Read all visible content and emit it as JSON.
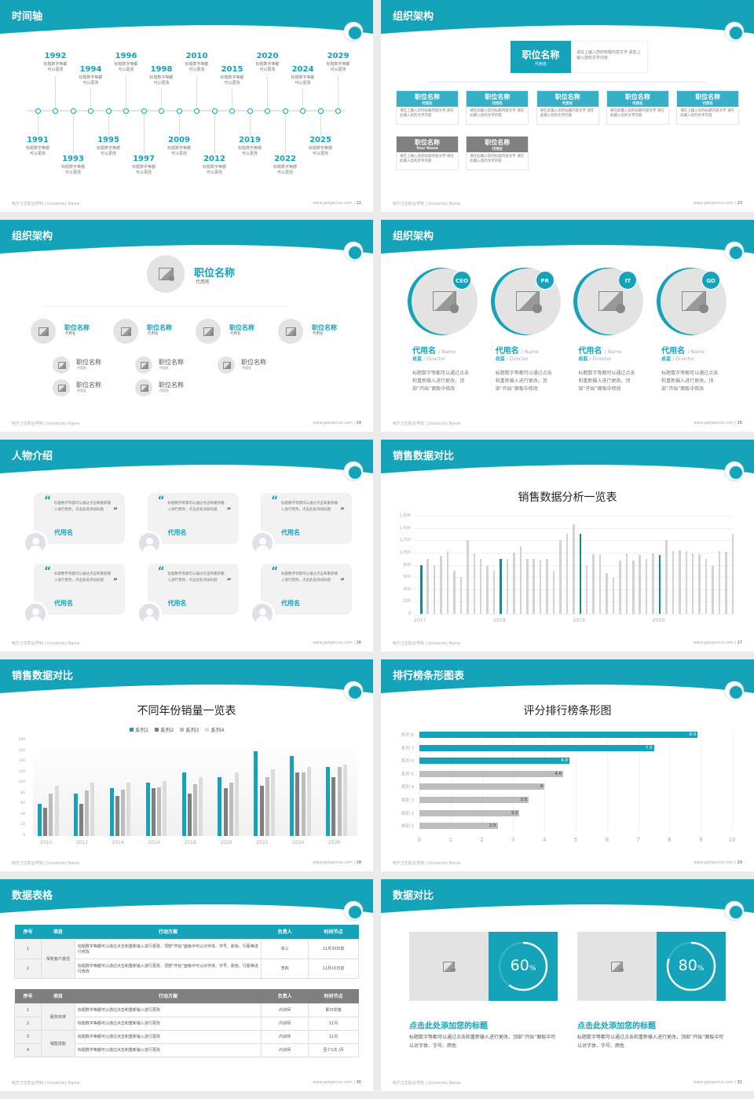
{
  "colors": {
    "teal": "#14a3b8",
    "gray": "#7f7f7f",
    "light": "#c8c8c8"
  },
  "footer": {
    "left": "哈尔卫生职业学院 | University Name",
    "site": "www.pptgenius.com"
  },
  "slides": [
    {
      "title": "时间轴",
      "page": "22"
    },
    {
      "title": "组织架构",
      "page": "23"
    },
    {
      "title": "组织架构",
      "page": "24"
    },
    {
      "title": "组织架构",
      "page": "25"
    },
    {
      "title": "人物介绍",
      "page": "26"
    },
    {
      "title": "销售数据对比",
      "page": "27"
    },
    {
      "title": "销售数据对比",
      "page": "28"
    },
    {
      "title": "排行榜条形图表",
      "page": "29"
    },
    {
      "title": "数据表格",
      "page": "30"
    },
    {
      "title": "数据对比",
      "page": "31"
    }
  ],
  "timeline": {
    "desc": "标题数字等都可以更改",
    "years": [
      "1991",
      "1992",
      "1993",
      "1994",
      "1995",
      "1996",
      "1997",
      "1998",
      "2009",
      "2010",
      "2012",
      "2015",
      "2019",
      "2020",
      "2022",
      "2024",
      "2025",
      "2029"
    ]
  },
  "org1": {
    "top": {
      "title": "职位名称",
      "sub": "代用名",
      "desc": "请在上输入您的标题内容文字 请在上输入您的文字内容"
    },
    "boxes": [
      {
        "title": "职位名称",
        "sub": "代用名",
        "desc": "请在上输入您的标题内容文字 请在此输入您的文字内容",
        "style": "teal"
      },
      {
        "title": "职位名称",
        "sub": "代用名",
        "desc": "请在此输入您的标题内容文字 请在此输入您的文字内容",
        "style": "teal"
      },
      {
        "title": "职位名称",
        "sub": "代用名",
        "desc": "请在此输入您的标题内容文字 请在此输入您的文字内容",
        "style": "teal"
      },
      {
        "title": "职位名称",
        "sub": "代用名",
        "desc": "请在此输入您的标题内容文字 请在此输入您的文字内容",
        "style": "teal"
      },
      {
        "title": "职位名称",
        "sub": "代用名",
        "desc": "请在上输入您的标题内容文字 请在此输入您的文字内容",
        "style": "teal"
      },
      {
        "title": "职位名称",
        "sub": "Your Name",
        "desc": "请在上输入您的标题内容文字 请在此输入您的文字内容",
        "style": "gray"
      },
      {
        "title": "职位名称",
        "sub": "代用名",
        "desc": "请在此输入您的标题内容文字 请在此输入您的文字内容",
        "style": "gray"
      }
    ]
  },
  "org2": {
    "top": {
      "title": "职位名称",
      "sub": "代用名"
    },
    "mid": [
      {
        "title": "职位名称",
        "sub": "代用名"
      },
      {
        "title": "职位名称",
        "sub": "代用名"
      },
      {
        "title": "职位名称",
        "sub": "代用名"
      },
      {
        "title": "职位名称",
        "sub": "代用名"
      }
    ],
    "subs": [
      [
        {
          "title": "职位名称",
          "sub": "代用名"
        },
        {
          "title": "职位名称",
          "sub": "代用名"
        }
      ],
      [
        {
          "title": "职位名称",
          "sub": "代用名"
        },
        {
          "title": "职位名称",
          "sub": "代用名"
        }
      ],
      [
        {
          "title": "职位名称",
          "sub": "代用名"
        }
      ],
      []
    ]
  },
  "team": [
    {
      "badge": "CEO",
      "name": "代用名",
      "name_en": "/ Name",
      "role": "总监",
      "role_en": "/ Director",
      "desc": "标题数字等都可以通过点击和重新输入进行更改，顶部“开始”面板中修改"
    },
    {
      "badge": "PR",
      "name": "代用名",
      "name_en": "/ Name",
      "role": "总监",
      "role_en": "/ Director",
      "desc": "标题数字等都可以通过点击和重新输入进行更改，顶部“开始”面板中修改"
    },
    {
      "badge": "IT",
      "name": "代用名",
      "name_en": "/ Name",
      "role": "总监",
      "role_en": "/ Director",
      "desc": "标题数字等都可以通过点击和重新输入进行更改，顶部“开始”面板中修改"
    },
    {
      "badge": "GD",
      "name": "代用名",
      "name_en": "/ Name",
      "role": "总监",
      "role_en": "/ Director",
      "desc": "标题数字等都可以通过点击和重新输入进行更改，顶部“开始”面板中修改"
    }
  ],
  "quotes": [
    {
      "text": "标题数字等都可以通过点击和重新输入进行更改，点击此处添加标题",
      "name": "代用名"
    },
    {
      "text": "标题数字等都可以通过点击和重新输入进行更改，点击此处添加标题",
      "name": "代用名"
    },
    {
      "text": "标题数字等都可以通过点击和重新输入进行更改，点击此处添加标题",
      "name": "代用名"
    },
    {
      "text": "标题数字等都可以通过点击和重新输入进行更改，点击此处添加标题",
      "name": "代用名"
    },
    {
      "text": "标题数字等都可以通过点击和重新输入进行更改，点击此处添加标题",
      "name": "代用名"
    },
    {
      "text": "标题数字等都可以通过点击和重新输入进行更改，点击此处添加标题",
      "name": "代用名"
    }
  ],
  "chart_data": [
    {
      "type": "bar",
      "title": "销售数据分析一览表",
      "ylim": [
        0,
        1600
      ],
      "yticks": [
        "0",
        "200",
        "400",
        "600",
        "800",
        "1,000",
        "1,200",
        "1,400",
        "1,600"
      ],
      "xlabels": [
        "2017",
        "2018",
        "2019",
        "2020"
      ],
      "highlight_every": 12,
      "grid": true,
      "values": [
        800,
        900,
        800,
        950,
        1020,
        700,
        600,
        1200,
        985,
        900,
        780,
        700,
        890,
        895,
        1000,
        1100,
        900,
        900,
        880,
        900,
        700,
        1200,
        1300,
        1460,
        1300,
        800,
        970,
        975,
        665,
        595,
        875,
        985,
        865,
        965,
        895,
        985,
        960,
        1200,
        1020,
        1035,
        1025,
        985,
        970,
        895,
        780,
        1020,
        1005,
        1300
      ]
    },
    {
      "type": "bar",
      "title": "不同年份销量一览表",
      "ylim": [
        0,
        180
      ],
      "yticks": [
        "0",
        "20",
        "40",
        "60",
        "80",
        "100",
        "120",
        "140",
        "160",
        "180"
      ],
      "legend": "top",
      "categories": [
        "2010",
        "2012",
        "2014",
        "2016",
        "2018",
        "2020",
        "2022",
        "2024",
        "2026"
      ],
      "series": [
        {
          "name": "系列1",
          "color": "#14a3b8",
          "values": [
            60,
            80,
            90,
            100,
            120,
            110,
            160,
            150,
            130
          ]
        },
        {
          "name": "系列2",
          "color": "#7f7f7f",
          "values": [
            53,
            60,
            75,
            90,
            80,
            90,
            95,
            120,
            110
          ]
        },
        {
          "name": "系列3",
          "color": "#bdbdbd",
          "values": [
            80,
            85,
            87,
            92,
            97,
            100,
            110,
            120,
            130
          ]
        },
        {
          "name": "系列4",
          "color": "#dcdcdc",
          "values": [
            95,
            100,
            101,
            104,
            110,
            120,
            126,
            130,
            134
          ]
        }
      ]
    },
    {
      "type": "bar",
      "orientation": "horizontal",
      "title": "评分排行榜条形图",
      "xlim": [
        0,
        10
      ],
      "xticks": [
        "0",
        "1",
        "2",
        "3",
        "4",
        "5",
        "6",
        "7",
        "8",
        "9",
        "10"
      ],
      "categories": [
        "系列 8",
        "系列 7",
        "系列 6",
        "系列 5",
        "类别 4",
        "类别 3",
        "类别 2",
        "类别 1"
      ],
      "values": [
        8.9,
        7.5,
        4.8,
        4.6,
        4,
        3.5,
        3.2,
        2.5
      ],
      "labels": [
        "8.9",
        "7.5",
        "4.8",
        "4.6",
        "4",
        "3.5",
        "3.2",
        "2.5"
      ],
      "colors": [
        "#14a3b8",
        "#14a3b8",
        "#14a3b8",
        "#bdbdbd",
        "#bdbdbd",
        "#bdbdbd",
        "#bdbdbd",
        "#bdbdbd"
      ]
    }
  ],
  "table1": {
    "headers": [
      "序号",
      "项目",
      "行动方案",
      "负责人",
      "时间节点"
    ],
    "group": "保有客户激活",
    "rows": [
      {
        "no": "1",
        "action": "标题数字等都可以通过点击和重新输入进行更改，顶部“开始”面板中可以对字体、字号、颜色、行距等进行修改",
        "owner": "张三",
        "time": "11月30日前"
      },
      {
        "no": "2",
        "action": "标题数字等都可以通过点击和重新输入进行更改，顶部“开始”面板中可以对字体、字号、颜色、行距等进行修改",
        "owner": "李四",
        "time": "11月15日前"
      }
    ]
  },
  "table2": {
    "headers": [
      "序号",
      "项目",
      "行动方案",
      "负责人",
      "时间节点"
    ],
    "groups": [
      "服务标准",
      "销售技能"
    ],
    "rows": [
      {
        "no": "1",
        "action": "标题数字等都可以通过点击和重新输入进行更改",
        "owner": "内训师",
        "time": "即日实施"
      },
      {
        "no": "2",
        "action": "标题数字等都可以通过点击和重新输入进行更改",
        "owner": "内训师",
        "time": "11月"
      },
      {
        "no": "3",
        "action": "标题数字等都可以通过点击和重新输入进行更改",
        "owner": "内训师",
        "time": "11月"
      },
      {
        "no": "4",
        "action": "标题数字等都可以通过点击和重新输入进行更改",
        "owner": "内训师",
        "time": "至少1次 /月"
      }
    ]
  },
  "compare": [
    {
      "percent": 60,
      "value": "60",
      "unit": "%",
      "title": "点击此处添加您的标题",
      "desc": "标题数字等都可以通过点击和重新输入进行更改，顶部“开始”面板中可以对字体、字号、颜色"
    },
    {
      "percent": 80,
      "value": "80",
      "unit": "%",
      "title": "点击此处添加您的标题",
      "desc": "标题数字等都可以通过点击和重新输入进行更改，顶部“开始”面板中可以对字体、字号、颜色"
    }
  ]
}
